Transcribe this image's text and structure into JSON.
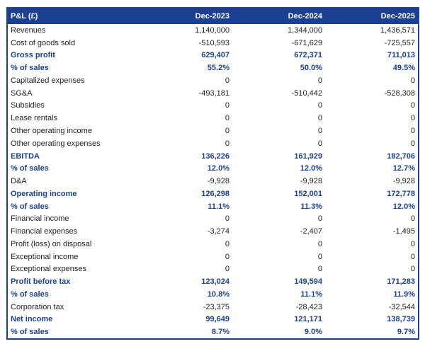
{
  "colors": {
    "navy": "#1b4093",
    "body_text": "#1f1f1f",
    "background": "#ffffff"
  },
  "chart_data": {
    "type": "table",
    "title": "P&L (£)",
    "columns": [
      "Dec-2023",
      "Dec-2024",
      "Dec-2025"
    ],
    "rows": [
      {
        "label": "Revenues",
        "values": [
          "1,140,000",
          "1,344,000",
          "1,436,571"
        ],
        "bold": false
      },
      {
        "label": "Cost of goods sold",
        "values": [
          "-510,593",
          "-671,629",
          "-725,557"
        ],
        "bold": false
      },
      {
        "label": "Gross profit",
        "values": [
          "629,407",
          "672,371",
          "711,013"
        ],
        "bold": true
      },
      {
        "label": "% of sales",
        "values": [
          "55.2%",
          "50.0%",
          "49.5%"
        ],
        "bold": true
      },
      {
        "label": "Capitalized expenses",
        "values": [
          "0",
          "0",
          "0"
        ],
        "bold": false
      },
      {
        "label": "SG&A",
        "values": [
          "-493,181",
          "-510,442",
          "-528,308"
        ],
        "bold": false
      },
      {
        "label": "Subsidies",
        "values": [
          "0",
          "0",
          "0"
        ],
        "bold": false
      },
      {
        "label": "Lease rentals",
        "values": [
          "0",
          "0",
          "0"
        ],
        "bold": false
      },
      {
        "label": "Other operating income",
        "values": [
          "0",
          "0",
          "0"
        ],
        "bold": false
      },
      {
        "label": "Other operating expenses",
        "values": [
          "0",
          "0",
          "0"
        ],
        "bold": false
      },
      {
        "label": "EBITDA",
        "values": [
          "136,226",
          "161,929",
          "182,706"
        ],
        "bold": true
      },
      {
        "label": "% of sales",
        "values": [
          "12.0%",
          "12.0%",
          "12.7%"
        ],
        "bold": true
      },
      {
        "label": "D&A",
        "values": [
          "-9,928",
          "-9,928",
          "-9,928"
        ],
        "bold": false
      },
      {
        "label": "Operating income",
        "values": [
          "126,298",
          "152,001",
          "172,778"
        ],
        "bold": true
      },
      {
        "label": "% of sales",
        "values": [
          "11.1%",
          "11.3%",
          "12.0%"
        ],
        "bold": true
      },
      {
        "label": "Financial income",
        "values": [
          "0",
          "0",
          "0"
        ],
        "bold": false
      },
      {
        "label": "Financial expenses",
        "values": [
          "-3,274",
          "-2,407",
          "-1,495"
        ],
        "bold": false
      },
      {
        "label": "Profit (loss) on disposal",
        "values": [
          "0",
          "0",
          "0"
        ],
        "bold": false
      },
      {
        "label": "Exceptional income",
        "values": [
          "0",
          "0",
          "0"
        ],
        "bold": false
      },
      {
        "label": "Exceptional expenses",
        "values": [
          "0",
          "0",
          "0"
        ],
        "bold": false
      },
      {
        "label": "Profit before tax",
        "values": [
          "123,024",
          "149,594",
          "171,283"
        ],
        "bold": true
      },
      {
        "label": "% of sales",
        "values": [
          "10.8%",
          "11.1%",
          "11.9%"
        ],
        "bold": true
      },
      {
        "label": "Corporation tax",
        "values": [
          "-23,375",
          "-28,423",
          "-32,544"
        ],
        "bold": false
      },
      {
        "label": "Net income",
        "values": [
          "99,649",
          "121,171",
          "138,739"
        ],
        "bold": true
      },
      {
        "label": "% of sales",
        "values": [
          "8.7%",
          "9.0%",
          "9.7%"
        ],
        "bold": true
      }
    ]
  }
}
